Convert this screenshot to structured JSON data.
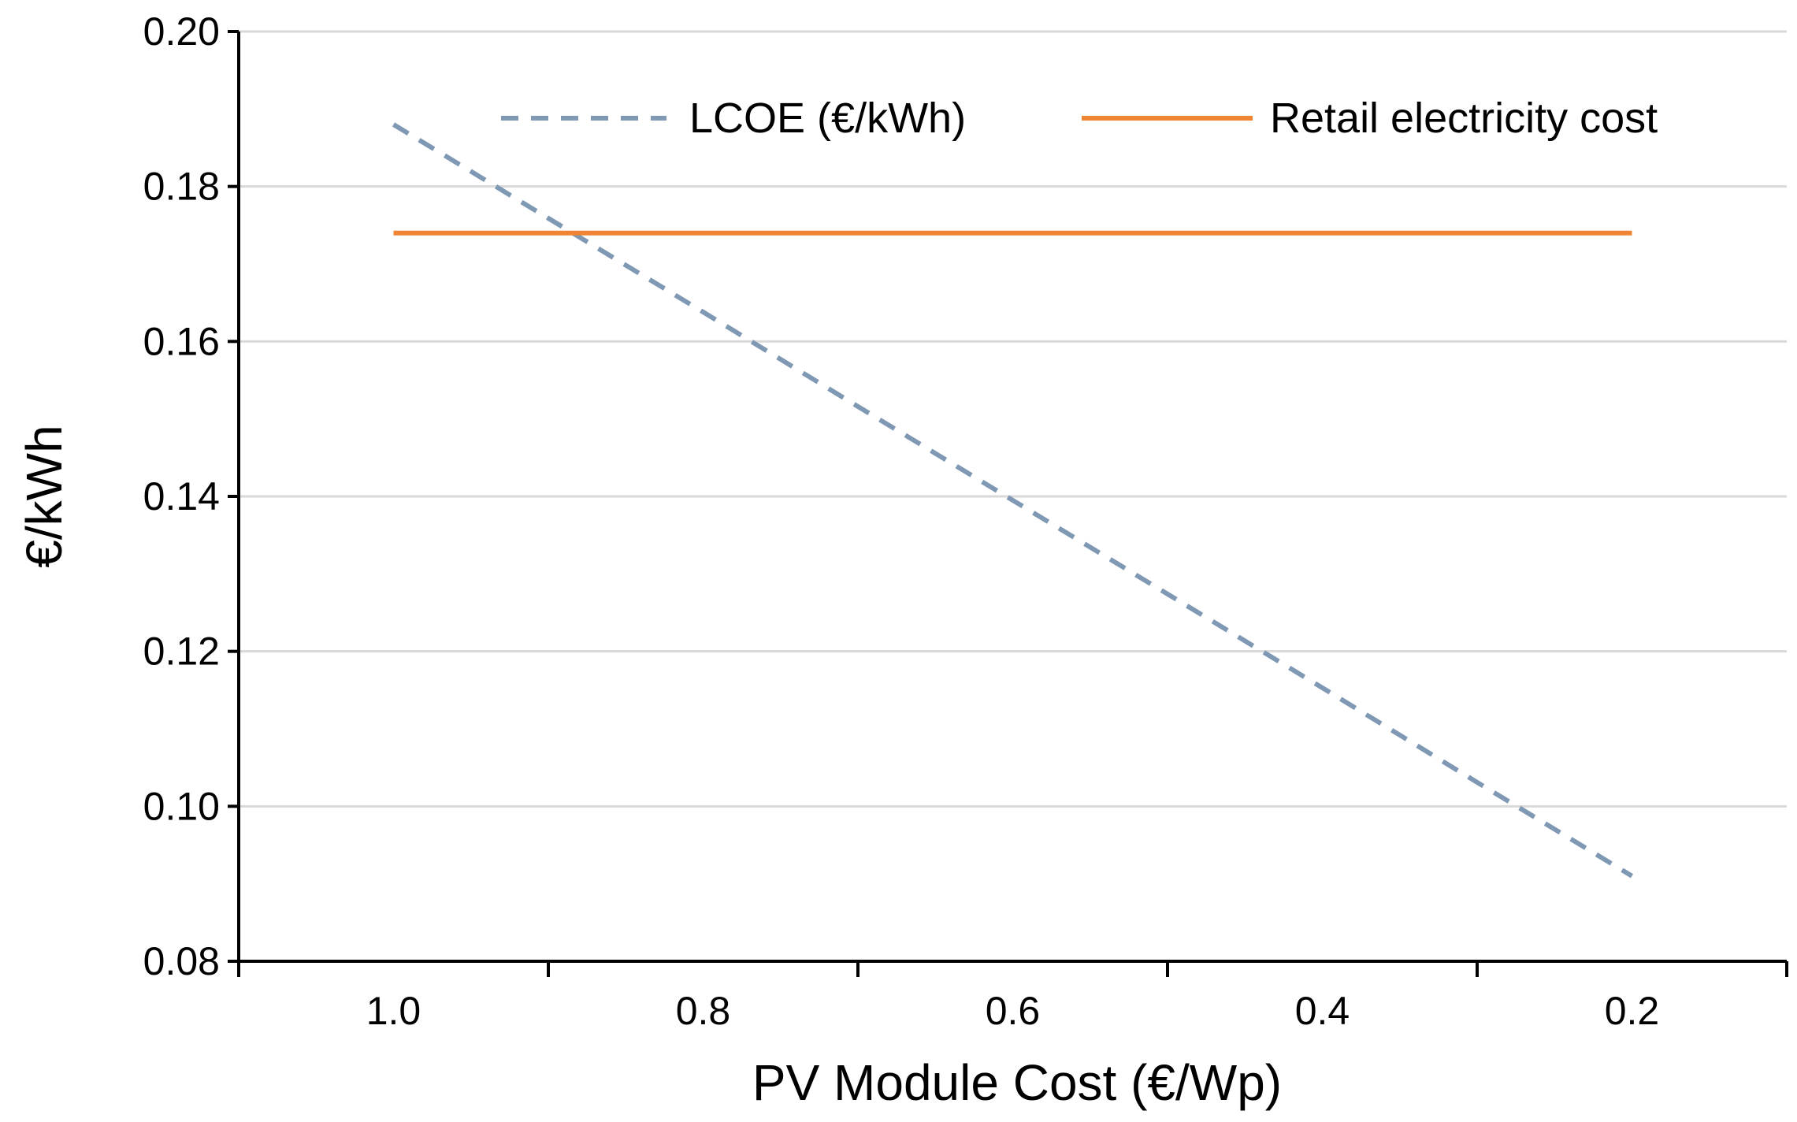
{
  "chart_data": {
    "type": "line",
    "title": "",
    "xlabel": "PV Module Cost (€/Wp)",
    "ylabel": "€/kWh",
    "x_reversed": true,
    "x": [
      1.0,
      0.9,
      0.8,
      0.7,
      0.6,
      0.5,
      0.4,
      0.3,
      0.2
    ],
    "x_tick_labels": [
      "1.0",
      "0.8",
      "0.6",
      "0.4",
      "0.2"
    ],
    "x_tick_values": [
      1.0,
      0.8,
      0.6,
      0.4,
      0.2
    ],
    "ylim": [
      0.08,
      0.2
    ],
    "y_tick_labels": [
      "0.08",
      "0.10",
      "0.12",
      "0.14",
      "0.16",
      "0.18",
      "0.20"
    ],
    "y_tick_values": [
      0.08,
      0.1,
      0.12,
      0.14,
      0.16,
      0.18,
      0.2
    ],
    "grid": "horizontal",
    "legend_position": "top",
    "series": [
      {
        "name": "LCOE (€/kWh)",
        "style": "dashed",
        "color": "#7f98b4",
        "values": [
          0.188,
          0.1759,
          0.1638,
          0.1516,
          0.1395,
          0.1274,
          0.1153,
          0.1031,
          0.091
        ]
      },
      {
        "name": "Retail electricity cost",
        "style": "solid",
        "color": "#ef8432",
        "values": [
          0.174,
          0.174,
          0.174,
          0.174,
          0.174,
          0.174,
          0.174,
          0.174,
          0.174
        ]
      }
    ]
  }
}
